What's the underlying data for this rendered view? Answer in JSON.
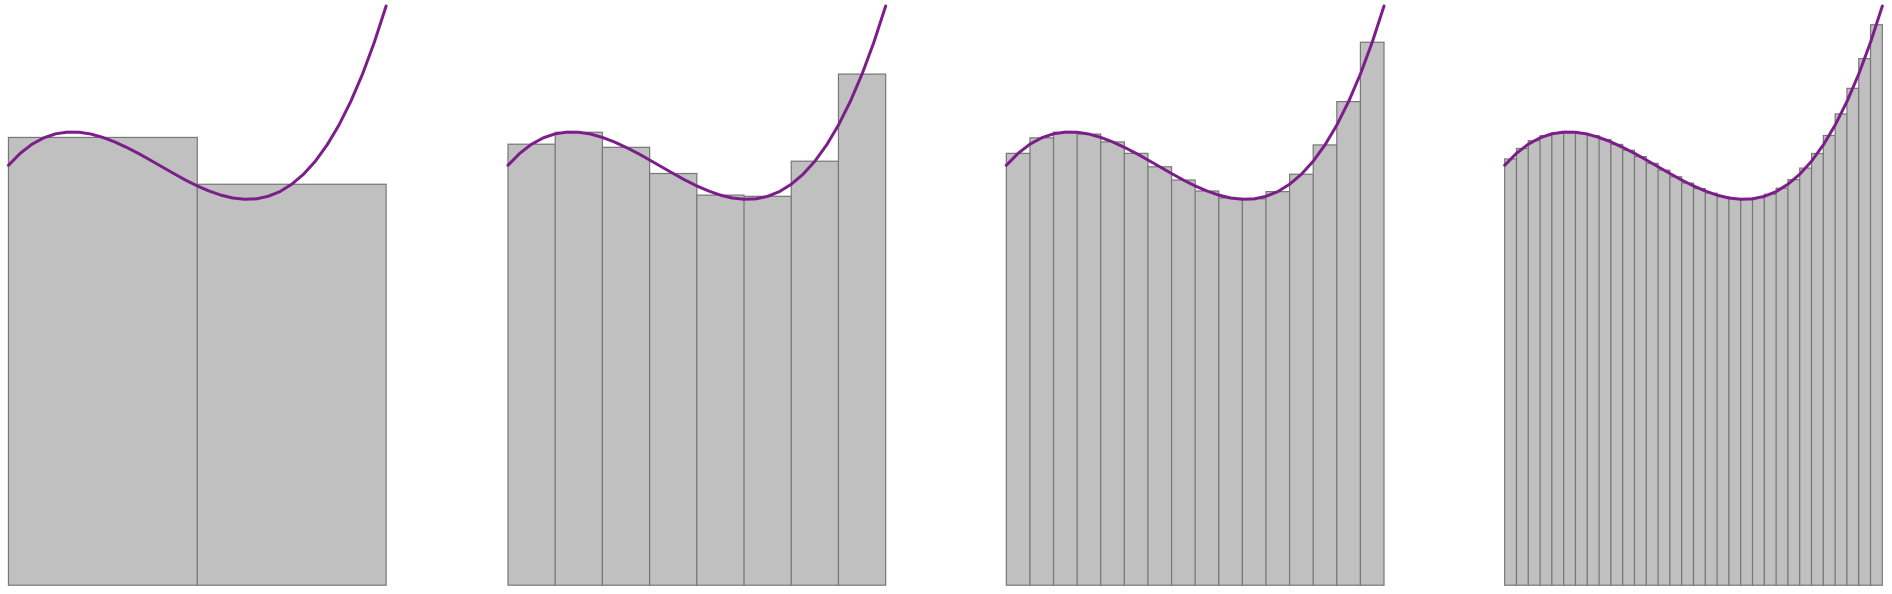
{
  "chart_data": [
    {
      "type": "bar",
      "xlim": [
        0,
        1
      ],
      "ylim": [
        0,
        480
      ],
      "series": [
        {
          "type": "bar",
          "color": "#c0c0c0",
          "values": [
            371.1,
            332.3
          ]
        },
        {
          "type": "line",
          "color": "#7b1e8a",
          "x": [
            0,
            0.03125,
            0.0625,
            0.09375,
            0.125,
            0.15625,
            0.1875,
            0.21875,
            0.25,
            0.28125,
            0.3125,
            0.34375,
            0.375,
            0.40625,
            0.4375,
            0.46875,
            0.5,
            0.53125,
            0.5625,
            0.59375,
            0.625,
            0.65625,
            0.6875,
            0.71875,
            0.75,
            0.78125,
            0.8125,
            0.84375,
            0.875,
            0.90625,
            0.9375,
            0.96875,
            1
          ],
          "values": [
            348,
            357.9,
            365.5,
            370.8,
            374.1,
            375.5,
            375.4,
            373.9,
            371.1,
            367.4,
            362.9,
            357.9,
            352.4,
            346.8,
            341.2,
            335.8,
            330.9,
            326.7,
            323.3,
            320.9,
            319.9,
            320.2,
            322.3,
            326.2,
            332.3,
            340.6,
            351.4,
            364.9,
            381.3,
            400.8,
            423.6,
            450.0,
            480
          ]
        }
      ]
    },
    {
      "type": "bar",
      "xlim": [
        0,
        1
      ],
      "ylim": [
        0,
        480
      ],
      "series": [
        {
          "type": "bar",
          "color": "#c0c0c0",
          "values": [
            365.5,
            375.4,
            362.9,
            341.2,
            323.3,
            322.3,
            351.4,
            423.6
          ]
        },
        {
          "type": "line",
          "color": "#7b1e8a",
          "x": [
            0,
            0.03125,
            0.0625,
            0.09375,
            0.125,
            0.15625,
            0.1875,
            0.21875,
            0.25,
            0.28125,
            0.3125,
            0.34375,
            0.375,
            0.40625,
            0.4375,
            0.46875,
            0.5,
            0.53125,
            0.5625,
            0.59375,
            0.625,
            0.65625,
            0.6875,
            0.71875,
            0.75,
            0.78125,
            0.8125,
            0.84375,
            0.875,
            0.90625,
            0.9375,
            0.96875,
            1
          ],
          "values": [
            348,
            357.9,
            365.5,
            370.8,
            374.1,
            375.5,
            375.4,
            373.9,
            371.1,
            367.4,
            362.9,
            357.9,
            352.4,
            346.8,
            341.2,
            335.8,
            330.9,
            326.7,
            323.3,
            320.9,
            319.9,
            320.2,
            322.3,
            326.2,
            332.3,
            340.6,
            351.4,
            364.9,
            381.3,
            400.8,
            423.6,
            450.0,
            480
          ]
        }
      ]
    },
    {
      "type": "bar",
      "xlim": [
        0,
        1
      ],
      "ylim": [
        0,
        480
      ],
      "series": [
        {
          "type": "bar",
          "color": "#c0c0c0",
          "values": [
            357.9,
            370.8,
            375.5,
            373.9,
            367.4,
            357.9,
            346.8,
            335.8,
            326.7,
            320.9,
            320.2,
            326.2,
            340.6,
            364.9,
            400.8,
            450.0
          ]
        },
        {
          "type": "line",
          "color": "#7b1e8a",
          "x": [
            0,
            0.03125,
            0.0625,
            0.09375,
            0.125,
            0.15625,
            0.1875,
            0.21875,
            0.25,
            0.28125,
            0.3125,
            0.34375,
            0.375,
            0.40625,
            0.4375,
            0.46875,
            0.5,
            0.53125,
            0.5625,
            0.59375,
            0.625,
            0.65625,
            0.6875,
            0.71875,
            0.75,
            0.78125,
            0.8125,
            0.84375,
            0.875,
            0.90625,
            0.9375,
            0.96875,
            1
          ],
          "values": [
            348,
            357.9,
            365.5,
            370.8,
            374.1,
            375.5,
            375.4,
            373.9,
            371.1,
            367.4,
            362.9,
            357.9,
            352.4,
            346.8,
            341.2,
            335.8,
            330.9,
            326.7,
            323.3,
            320.9,
            319.9,
            320.2,
            322.3,
            326.2,
            332.3,
            340.6,
            351.4,
            364.9,
            381.3,
            400.8,
            423.6,
            450.0,
            480
          ]
        }
      ]
    },
    {
      "type": "bar",
      "xlim": [
        0,
        1
      ],
      "ylim": [
        0,
        480
      ],
      "series": [
        {
          "type": "bar",
          "color": "#c0c0c0",
          "values": [
            353.3,
            362.0,
            368.4,
            372.6,
            375.0,
            375.7,
            374.8,
            372.6,
            369.4,
            365.3,
            360.5,
            355.2,
            349.6,
            344.0,
            338.5,
            333.3,
            328.7,
            324.9,
            322.0,
            320.2,
            319.8,
            321.0,
            324.0,
            329.0,
            336.1,
            345.7,
            357.8,
            372.7,
            390.6,
            411.8,
            436.4,
            464.5
          ]
        },
        {
          "type": "line",
          "color": "#7b1e8a",
          "x": [
            0,
            0.03125,
            0.0625,
            0.09375,
            0.125,
            0.15625,
            0.1875,
            0.21875,
            0.25,
            0.28125,
            0.3125,
            0.34375,
            0.375,
            0.40625,
            0.4375,
            0.46875,
            0.5,
            0.53125,
            0.5625,
            0.59375,
            0.625,
            0.65625,
            0.6875,
            0.71875,
            0.75,
            0.78125,
            0.8125,
            0.84375,
            0.875,
            0.90625,
            0.9375,
            0.96875,
            1
          ],
          "values": [
            348,
            357.9,
            365.5,
            370.8,
            374.1,
            375.5,
            375.4,
            373.9,
            371.1,
            367.4,
            362.9,
            357.9,
            352.4,
            346.8,
            341.2,
            335.8,
            330.9,
            326.7,
            323.3,
            320.9,
            319.9,
            320.2,
            322.3,
            326.2,
            332.3,
            340.6,
            351.4,
            364.9,
            381.3,
            400.8,
            423.6,
            450.0,
            480
          ]
        }
      ]
    }
  ]
}
